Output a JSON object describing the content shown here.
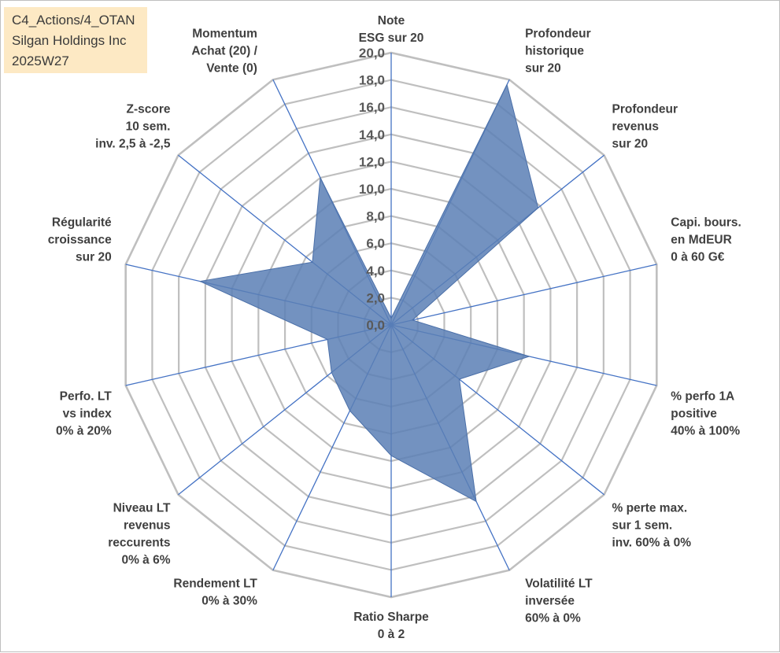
{
  "title_lines": [
    "C4_Actions/4_OTAN",
    "Silgan Holdings Inc",
    "2025W27"
  ],
  "chart_data": {
    "type": "radar",
    "rmin": 0,
    "rmax": 20,
    "tick_step": 2,
    "ticks": [
      "0,0",
      "2,0",
      "4,0",
      "6,0",
      "8,0",
      "10,0",
      "12,0",
      "14,0",
      "16,0",
      "18,0",
      "20,0"
    ],
    "grid": true,
    "legend": "none",
    "fill_color": "#5b7fb5",
    "axis_color": "#4472c4",
    "grid_color": "#bfbfbf",
    "axes": [
      {
        "label": [
          "Note",
          "ESG sur 20"
        ],
        "value": 0.5
      },
      {
        "label": [
          "Profondeur",
          "historique",
          "sur 20"
        ],
        "value": 19.6
      },
      {
        "label": [
          "Profondeur",
          "revenus",
          "sur 20"
        ],
        "value": 13.8
      },
      {
        "label": [
          "Capi. bours.",
          "en MdEUR",
          "0 à 60 G€"
        ],
        "value": 1.6
      },
      {
        "label": [
          "% perfo 1A",
          "positive",
          "40% à 100%"
        ],
        "value": 10.4
      },
      {
        "label": [
          "% perte max.",
          "sur 1 sem.",
          "inv. 60% à 0%"
        ],
        "value": 6.4
      },
      {
        "label": [
          "Volatilité LT",
          "inversée",
          "60% à 0%"
        ],
        "value": 14.4
      },
      {
        "label": [
          "Ratio Sharpe",
          "0 à 2"
        ],
        "value": 9.6
      },
      {
        "label": [
          "Rendement LT",
          "0% à 30%"
        ],
        "value": 7.0
      },
      {
        "label": [
          "Niveau LT",
          "revenus",
          "reccurents",
          "0% à 6%"
        ],
        "value": 5.6
      },
      {
        "label": [
          "Perfo. LT",
          "vs index",
          "0% à 20%"
        ],
        "value": 4.8
      },
      {
        "label": [
          "Régularité",
          "croissance",
          "sur 20"
        ],
        "value": 14.4
      },
      {
        "label": [
          "Z-score",
          "10 sem.",
          "inv. 2,5 à -2,5"
        ],
        "value": 7.4
      },
      {
        "label": [
          "Momentum",
          "Achat (20) /",
          "Vente (0)"
        ],
        "value": 12.0
      }
    ]
  }
}
